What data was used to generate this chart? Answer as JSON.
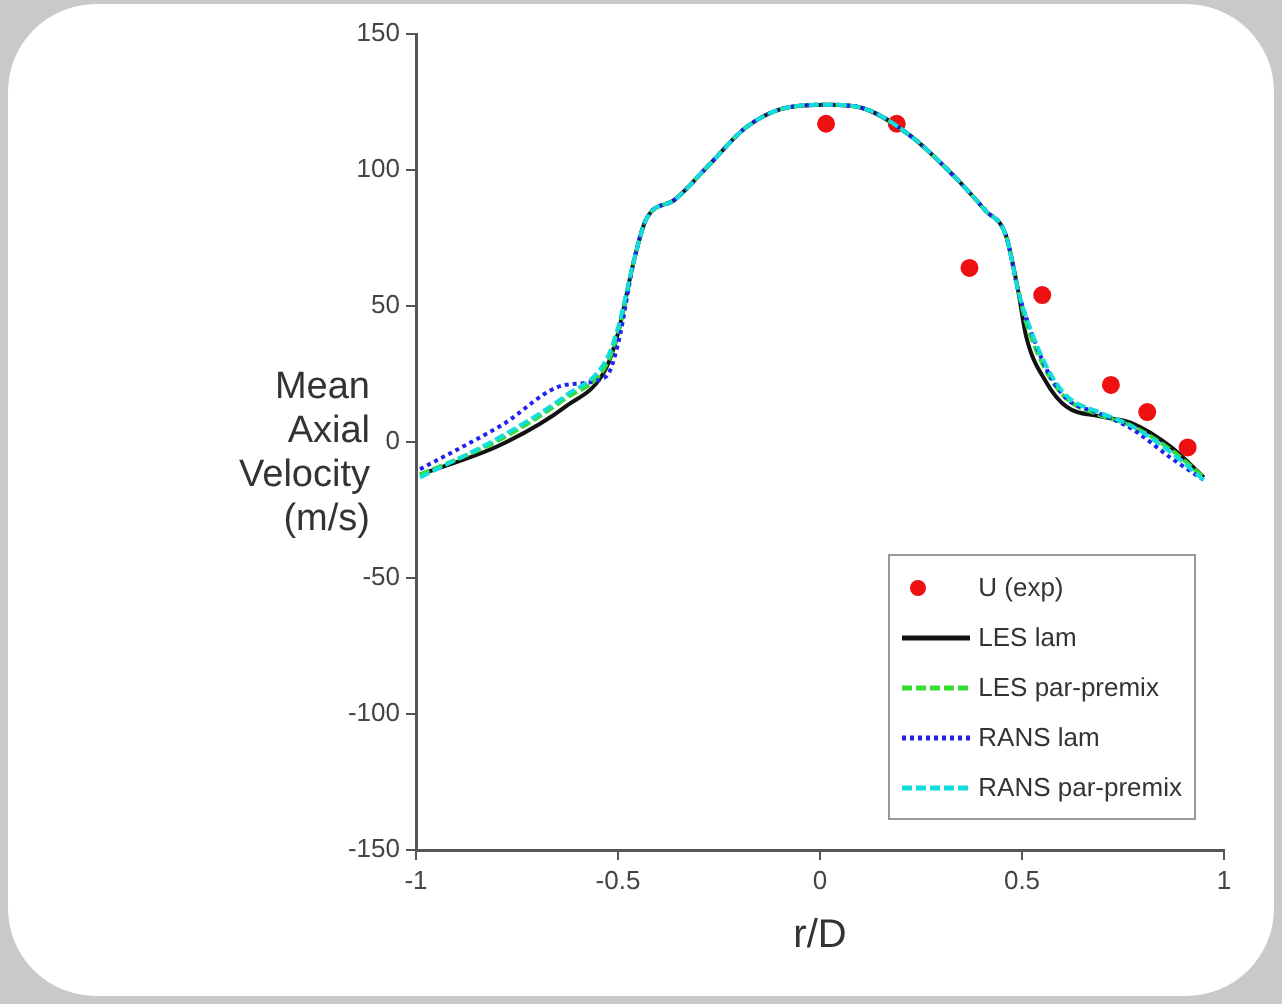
{
  "chart_data": {
    "type": "line",
    "xlabel": "r/D",
    "ylabel": "Mean Axial Velocity (m/s)",
    "xlim": [
      -1,
      1
    ],
    "xticks": [
      -1,
      -0.5,
      0,
      0.5,
      1
    ],
    "ylim": [
      -150,
      150
    ],
    "yticks": [
      -150,
      -100,
      -50,
      0,
      50,
      100,
      150
    ],
    "grid": false,
    "legend": "bottom right",
    "series": [
      {
        "name": "U (exp)",
        "type": "scatter",
        "marker": "circle",
        "color": "#ee1111",
        "x": [
          0.015,
          0.19,
          0.37,
          0.55,
          0.72,
          0.81,
          0.91
        ],
        "values": [
          117,
          117,
          64,
          54,
          21,
          11,
          -2
        ]
      },
      {
        "name": "LES lam",
        "type": "line",
        "line_style": "solid",
        "color": "#111111",
        "x": [
          -0.99,
          -0.79,
          -0.63,
          -0.53,
          -0.5,
          -0.46,
          -0.43,
          -0.36,
          -0.28,
          -0.18,
          -0.08,
          0.02,
          0.1,
          0.22,
          0.33,
          0.41,
          0.46,
          0.49,
          0.51,
          0.56,
          0.61,
          0.69,
          0.77,
          0.87,
          0.95
        ],
        "values": [
          -12,
          -1,
          13,
          27,
          40,
          67,
          82,
          89,
          101,
          116,
          123,
          124,
          123,
          113,
          98,
          85,
          76,
          56,
          39,
          22,
          13,
          9.5,
          7,
          -2,
          -13
        ]
      },
      {
        "name": "LES par-premix",
        "type": "line",
        "line_style": "dashed",
        "color": "#33dd33",
        "x": [
          -0.99,
          -0.79,
          -0.63,
          -0.53,
          -0.5,
          -0.46,
          -0.43,
          -0.36,
          -0.28,
          -0.18,
          -0.08,
          0.02,
          0.1,
          0.22,
          0.33,
          0.41,
          0.46,
          0.49,
          0.51,
          0.56,
          0.61,
          0.69,
          0.77,
          0.87,
          0.95
        ],
        "values": [
          -12,
          1,
          16,
          28,
          40,
          67,
          82,
          89,
          101,
          116,
          123,
          124,
          123,
          113,
          98,
          85,
          76,
          56,
          44,
          26,
          16,
          10,
          6,
          -3,
          -13
        ]
      },
      {
        "name": "RANS lam",
        "type": "line",
        "line_style": "dotted",
        "color": "#2222ee",
        "x": [
          -0.99,
          -0.79,
          -0.63,
          -0.53,
          -0.5,
          -0.46,
          -0.43,
          -0.36,
          -0.28,
          -0.18,
          -0.08,
          0.02,
          0.1,
          0.22,
          0.33,
          0.41,
          0.46,
          0.49,
          0.51,
          0.56,
          0.61,
          0.69,
          0.77,
          0.87,
          0.95
        ],
        "values": [
          -10,
          6,
          21,
          24,
          36,
          67,
          82,
          89,
          101,
          116,
          123,
          124,
          123,
          113,
          98,
          85,
          76,
          56,
          46,
          27,
          16,
          10.6,
          5,
          -6,
          -14
        ]
      },
      {
        "name": "RANS par-premix",
        "type": "line",
        "line_style": "dashed",
        "color": "#11dddd",
        "x": [
          -0.99,
          -0.79,
          -0.63,
          -0.53,
          -0.5,
          -0.46,
          -0.43,
          -0.36,
          -0.28,
          -0.18,
          -0.08,
          0.02,
          0.1,
          0.22,
          0.33,
          0.41,
          0.46,
          0.49,
          0.51,
          0.56,
          0.61,
          0.69,
          0.77,
          0.87,
          0.95
        ],
        "values": [
          -13,
          2,
          17,
          30,
          42,
          67,
          82,
          89,
          101,
          116,
          123,
          124,
          123,
          113,
          98,
          85,
          76,
          56,
          46,
          28,
          17,
          11,
          6,
          -4,
          -14
        ]
      }
    ]
  }
}
